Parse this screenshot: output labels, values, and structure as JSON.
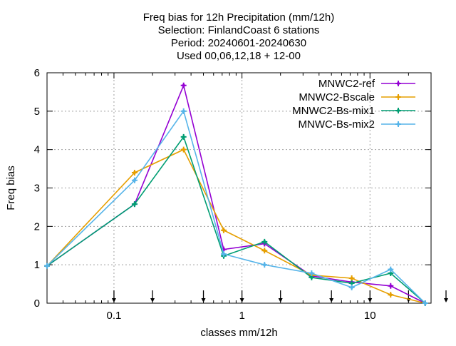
{
  "chart_data": {
    "type": "line",
    "title_lines": [
      "Freq bias  for 12h Precipitation (mm/12h)",
      "Selection: FinlandCoast      6 stations",
      "Period: 20240601-20240630",
      "Used 00,06,12,18 + 12-00"
    ],
    "xlabel": "classes mm/12h",
    "ylabel": "Freq bias",
    "xscale": "log",
    "xlim": [
      0.03,
      30
    ],
    "ylim": [
      0,
      6
    ],
    "xticks": [
      {
        "value": 0.1,
        "label": "0.1"
      },
      {
        "value": 1,
        "label": "1"
      },
      {
        "value": 10,
        "label": "10"
      }
    ],
    "yticks": [
      {
        "value": 0,
        "label": "0"
      },
      {
        "value": 1,
        "label": "1"
      },
      {
        "value": 2,
        "label": "2"
      },
      {
        "value": 3,
        "label": "3"
      },
      {
        "value": 4,
        "label": "4"
      },
      {
        "value": 5,
        "label": "5"
      },
      {
        "value": 6,
        "label": "6"
      }
    ],
    "grid": true,
    "legend_position": "top-right",
    "threshold_arrows": [
      0.1,
      0.2,
      0.5,
      1,
      2,
      5,
      10,
      20,
      40
    ],
    "x": [
      0.03,
      0.145,
      0.35,
      0.72,
      1.5,
      3.5,
      7.2,
      14.5,
      27
    ],
    "series": [
      {
        "name": "MNWC2-ref",
        "color": "#9400d3",
        "marker": "plus",
        "values": [
          0.97,
          2.58,
          5.67,
          1.4,
          1.55,
          0.71,
          0.55,
          0.45,
          0.0
        ]
      },
      {
        "name": "MNWC2-Bscale",
        "color": "#e69f00",
        "marker": "plus",
        "values": [
          0.97,
          3.4,
          4.0,
          1.9,
          1.37,
          0.73,
          0.65,
          0.22,
          0.0
        ]
      },
      {
        "name": "MNWC2-Bs-mix1",
        "color": "#009e73",
        "marker": "plus",
        "values": [
          0.97,
          2.58,
          4.33,
          1.23,
          1.6,
          0.67,
          0.52,
          0.78,
          0.0
        ]
      },
      {
        "name": "MNWC-Bs-mix2",
        "color": "#56b4e9",
        "marker": "plus",
        "values": [
          0.97,
          3.2,
          5.0,
          1.28,
          1.0,
          0.78,
          0.41,
          0.88,
          0.0
        ]
      }
    ]
  }
}
